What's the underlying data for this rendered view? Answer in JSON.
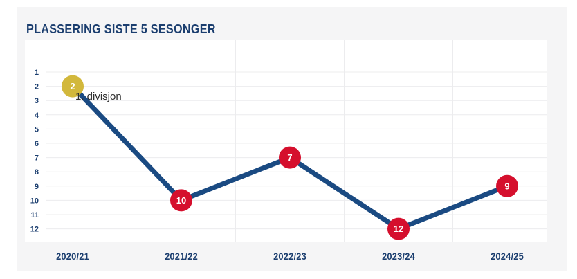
{
  "card": {
    "title": "PLASSERING SISTE 5 SESONGER"
  },
  "colors": {
    "card_background": "#f5f5f6",
    "plot_background": "#ffffff",
    "gridline": "#ececee",
    "navy_text": "#1b3e6f",
    "line": "#1a4a82",
    "marker_red": "#d50f2d",
    "marker_yellow": "#d2b83c",
    "marker_label": "#ffffff",
    "annotation_text": "#2e2e2e"
  },
  "chart_data": {
    "type": "line",
    "title": "PLASSERING SISTE 5 SESONGER",
    "categories": [
      "2020/21",
      "2021/22",
      "2022/23",
      "2023/24",
      "2024/25"
    ],
    "values": [
      2,
      10,
      7,
      12,
      9
    ],
    "point_labels": [
      "2",
      "10",
      "7",
      "12",
      "9"
    ],
    "marker_colors": [
      "#d2b83c",
      "#d50f2d",
      "#d50f2d",
      "#d50f2d",
      "#d50f2d"
    ],
    "annotation": {
      "text": "1. divisjon",
      "applies_to": "2020/21"
    },
    "y_axis": {
      "ticks": [
        "1",
        "2",
        "3",
        "4",
        "5",
        "6",
        "7",
        "8",
        "9",
        "10",
        "11",
        "12"
      ],
      "min": 1,
      "max": 12,
      "reversed": true,
      "label": ""
    },
    "x_axis": {
      "label": ""
    },
    "grid": true,
    "legend": false
  }
}
